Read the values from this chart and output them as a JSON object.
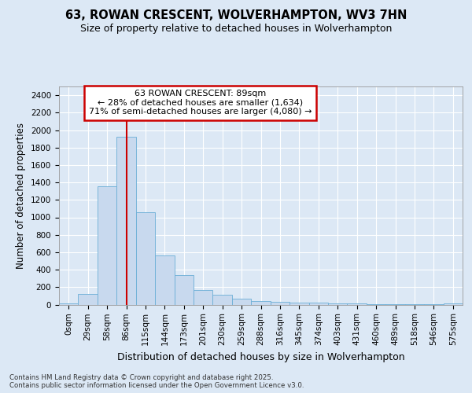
{
  "title1": "63, ROWAN CRESCENT, WOLVERHAMPTON, WV3 7HN",
  "title2": "Size of property relative to detached houses in Wolverhampton",
  "xlabel": "Distribution of detached houses by size in Wolverhampton",
  "ylabel": "Number of detached properties",
  "bar_values": [
    15,
    125,
    1360,
    1920,
    1060,
    560,
    335,
    170,
    110,
    65,
    40,
    30,
    25,
    20,
    15,
    10,
    5,
    5,
    5,
    5,
    15
  ],
  "bin_labels": [
    "0sqm",
    "29sqm",
    "58sqm",
    "86sqm",
    "115sqm",
    "144sqm",
    "173sqm",
    "201sqm",
    "230sqm",
    "259sqm",
    "288sqm",
    "316sqm",
    "345sqm",
    "374sqm",
    "403sqm",
    "431sqm",
    "460sqm",
    "489sqm",
    "518sqm",
    "546sqm",
    "575sqm"
  ],
  "bar_color": "#c8d9ee",
  "bar_edge_color": "#6baed6",
  "annotation_text": "63 ROWAN CRESCENT: 89sqm\n← 28% of detached houses are smaller (1,634)\n71% of semi-detached houses are larger (4,080) →",
  "vline_x": 3.0,
  "vline_color": "#cc0000",
  "annotation_box_color": "#cc0000",
  "ylim": [
    0,
    2500
  ],
  "yticks": [
    0,
    200,
    400,
    600,
    800,
    1000,
    1200,
    1400,
    1600,
    1800,
    2000,
    2200,
    2400
  ],
  "footer_text": "Contains HM Land Registry data © Crown copyright and database right 2025.\nContains public sector information licensed under the Open Government Licence v3.0.",
  "background_color": "#dce8f5",
  "plot_bg_color": "#dce8f5",
  "grid_color": "#ffffff",
  "title_fontsize": 10.5,
  "subtitle_fontsize": 9,
  "tick_fontsize": 7.5,
  "ylabel_fontsize": 8.5,
  "xlabel_fontsize": 9,
  "annotation_fontsize": 8
}
